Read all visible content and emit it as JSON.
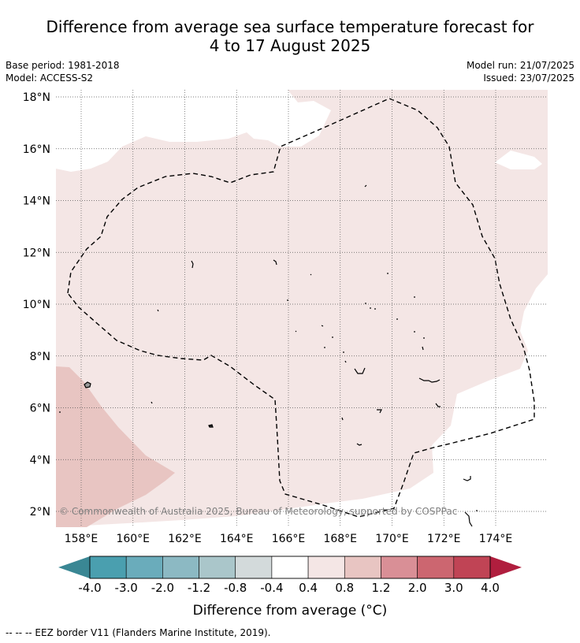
{
  "title_line1": "Difference from average sea surface temperature forecast for",
  "title_line2": "4 to 17 August 2025",
  "meta": {
    "base_period": "Base period: 1981-2018",
    "model": "Model: ACCESS-S2",
    "model_run": "Model run: 21/07/2025",
    "issued": "Issued: 23/07/2025"
  },
  "axes": {
    "lon_labels": [
      "158°E",
      "160°E",
      "162°E",
      "164°E",
      "166°E",
      "168°E",
      "170°E",
      "172°E",
      "174°E"
    ],
    "lat_labels": [
      "2°N",
      "4°N",
      "6°N",
      "8°N",
      "10°N",
      "12°N",
      "14°N",
      "16°N",
      "18°N"
    ]
  },
  "map": {
    "copyright": "© Commonwealth of Australia 2025, Bureau of Meteorology, supported by COSPPac",
    "colors": {
      "anomaly_04_08": "#f4e6e5",
      "anomaly_08_12": "#e8c5c2",
      "eez_border": "#000000",
      "gridline": "#555555"
    }
  },
  "colorbar": {
    "labels": [
      "-4.0",
      "-3.0",
      "-2.0",
      "-1.2",
      "-0.8",
      "-0.4",
      "0.4",
      "0.8",
      "1.2",
      "2.0",
      "3.0",
      "4.0"
    ],
    "colors": [
      "#4a9faf",
      "#6aacbb",
      "#8cb9c3",
      "#aac6ca",
      "#d3dadb",
      "#ffffff",
      "#f4e6e5",
      "#e8c5c2",
      "#d98f96",
      "#cc6670",
      "#c04455"
    ],
    "extend_low_color": "#3a8794",
    "extend_high_color": "#b01e3e",
    "title": "Difference from average (°C)"
  },
  "footer": "--  --  -- EEZ border V11 (Flanders Marine Institute, 2019)."
}
